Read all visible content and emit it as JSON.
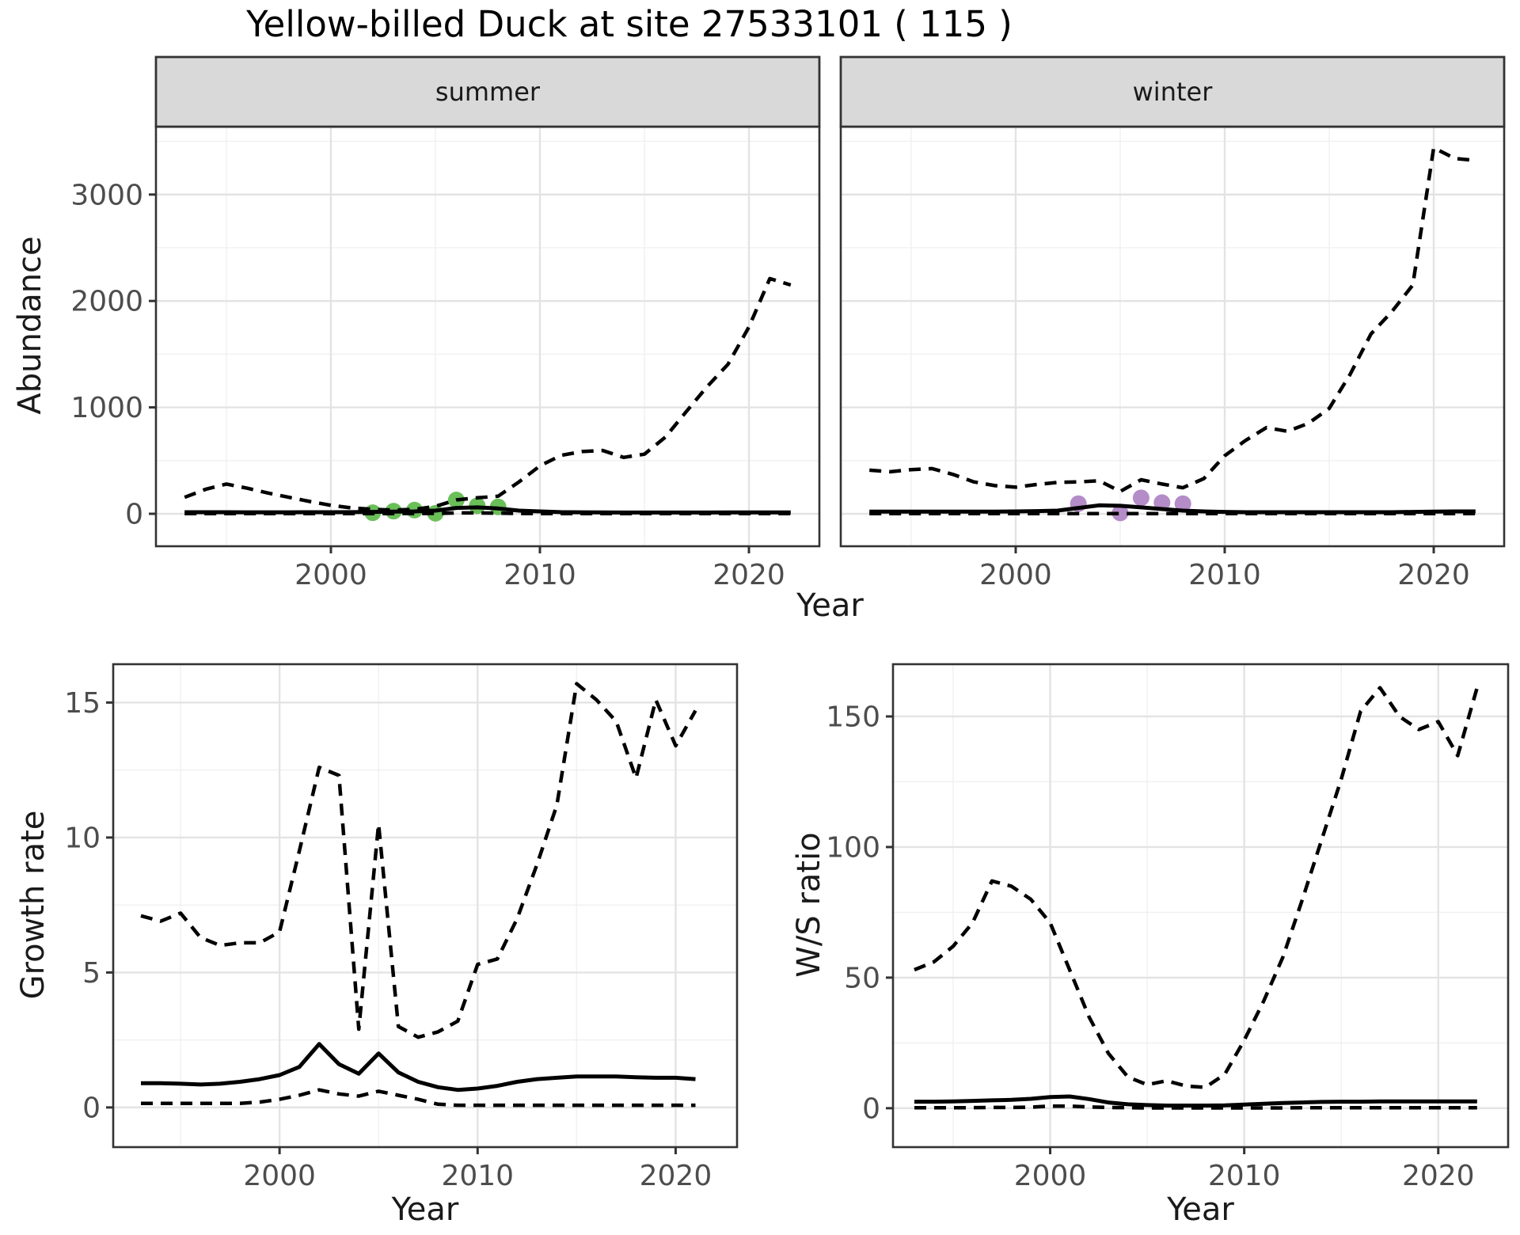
{
  "figure": {
    "title": "Yellow-billed Duck at site 27533101 ( 115 )"
  },
  "colors": {
    "line": "#000000",
    "summer_points": "#6bbf59",
    "winter_points": "#b48cc8",
    "strip_fill": "#d9d9d9",
    "panel_border": "#333333",
    "grid_major": "#e3e3e3",
    "grid_minor": "#f0f0f0",
    "tick_text": "#4d4d4d"
  },
  "chart_data": [
    {
      "id": "abundance-summer",
      "type": "line",
      "facet_label": "summer",
      "ylabel": "Abundance",
      "xlabel": "Year",
      "xlim": [
        1991.63,
        2023.37
      ],
      "ylim": [
        -305,
        3638
      ],
      "xticks": [
        2000,
        2010,
        2020
      ],
      "xticks_minor": [
        1995,
        2005,
        2015
      ],
      "yticks": [
        0,
        1000,
        2000,
        3000
      ],
      "yticks_minor": [
        500,
        1500,
        2500,
        3500
      ],
      "x": [
        1993,
        1994,
        1995,
        1996,
        1997,
        1998,
        1999,
        2000,
        2001,
        2002,
        2003,
        2004,
        2005,
        2006,
        2007,
        2008,
        2009,
        2010,
        2011,
        2012,
        2013,
        2014,
        2015,
        2016,
        2017,
        2018,
        2019,
        2020,
        2021,
        2022
      ],
      "series": [
        {
          "name": "upper_ci",
          "style": "dashed",
          "values": [
            155,
            230,
            280,
            240,
            195,
            155,
            115,
            80,
            55,
            42,
            35,
            42,
            70,
            130,
            150,
            165,
            300,
            450,
            548,
            585,
            595,
            530,
            560,
            720,
            960,
            1195,
            1405,
            1755,
            2210,
            2150
          ]
        },
        {
          "name": "median",
          "style": "solid",
          "values": [
            15,
            15,
            15,
            14,
            14,
            14,
            15,
            15,
            16,
            18,
            20,
            22,
            30,
            55,
            60,
            50,
            30,
            22,
            16,
            14,
            13,
            12,
            12,
            12,
            12,
            12,
            13,
            13,
            13,
            13
          ]
        },
        {
          "name": "lower_ci",
          "style": "dashed",
          "values": [
            2,
            2,
            2,
            2,
            2,
            2,
            2,
            2,
            2,
            2,
            2,
            3,
            4,
            8,
            8,
            6,
            3,
            2,
            2,
            2,
            2,
            2,
            2,
            2,
            2,
            2,
            2,
            2,
            2,
            2
          ]
        }
      ],
      "points": {
        "name": "observed_counts",
        "color": "#6bbf59",
        "x": [
          2002,
          2003,
          2004,
          2005,
          2006,
          2007,
          2008
        ],
        "y": [
          10,
          25,
          35,
          5,
          130,
          75,
          65
        ]
      }
    },
    {
      "id": "abundance-winter",
      "type": "line",
      "facet_label": "winter",
      "ylabel": "Abundance",
      "xlabel": "Year",
      "xlim": [
        1991.63,
        2023.37
      ],
      "ylim": [
        -305,
        3638
      ],
      "xticks": [
        2000,
        2010,
        2020
      ],
      "xticks_minor": [
        1995,
        2005,
        2015
      ],
      "yticks": [
        0,
        1000,
        2000,
        3000
      ],
      "yticks_minor": [
        500,
        1500,
        2500,
        3500
      ],
      "x": [
        1993,
        1994,
        1995,
        1996,
        1997,
        1998,
        1999,
        2000,
        2001,
        2002,
        2003,
        2004,
        2005,
        2006,
        2007,
        2008,
        2009,
        2010,
        2011,
        2012,
        2013,
        2014,
        2015,
        2016,
        2017,
        2018,
        2019,
        2020,
        2021,
        2022
      ],
      "series": [
        {
          "name": "upper_ci",
          "style": "dashed",
          "values": [
            410,
            395,
            415,
            425,
            370,
            300,
            265,
            250,
            275,
            295,
            300,
            310,
            210,
            320,
            280,
            245,
            330,
            545,
            690,
            810,
            775,
            850,
            990,
            1310,
            1690,
            1900,
            2150,
            3440,
            3340,
            3320
          ]
        },
        {
          "name": "median",
          "style": "solid",
          "values": [
            20,
            20,
            20,
            20,
            20,
            20,
            20,
            22,
            25,
            30,
            55,
            80,
            75,
            60,
            45,
            30,
            22,
            18,
            15,
            15,
            15,
            15,
            15,
            15,
            15,
            15,
            18,
            20,
            22,
            22
          ]
        },
        {
          "name": "lower_ci",
          "style": "dashed",
          "values": [
            2,
            2,
            2,
            2,
            2,
            2,
            2,
            2,
            2,
            2,
            2,
            2,
            2,
            2,
            2,
            2,
            2,
            2,
            2,
            2,
            2,
            2,
            2,
            2,
            2,
            2,
            2,
            2,
            2,
            2
          ]
        }
      ],
      "points": {
        "name": "observed_counts",
        "color": "#b48cc8",
        "x": [
          2003,
          2005,
          2006,
          2007,
          2008
        ],
        "y": [
          95,
          8,
          150,
          105,
          95
        ]
      }
    },
    {
      "id": "growth-rate",
      "type": "line",
      "facet_label": "",
      "ylabel": "Growth rate",
      "xlabel": "Year",
      "xlim": [
        1991.6,
        2023.1
      ],
      "ylim": [
        -1.47,
        16.42
      ],
      "xticks": [
        2000,
        2010,
        2020
      ],
      "xticks_minor": [
        1995,
        2005,
        2015
      ],
      "yticks": [
        0,
        5,
        10,
        15
      ],
      "yticks_minor": [
        2.5,
        7.5,
        12.5
      ],
      "x": [
        1993,
        1994,
        1995,
        1996,
        1997,
        1998,
        1999,
        2000,
        2001,
        2002,
        2003,
        2004,
        2005,
        2006,
        2007,
        2008,
        2009,
        2010,
        2011,
        2012,
        2013,
        2014,
        2015,
        2016,
        2017,
        2018,
        2019,
        2020,
        2021
      ],
      "series": [
        {
          "name": "upper_ci",
          "style": "dashed",
          "values": [
            7.1,
            6.9,
            7.2,
            6.3,
            6.0,
            6.1,
            6.1,
            6.5,
            9.5,
            12.6,
            12.3,
            2.9,
            10.5,
            3.0,
            2.6,
            2.8,
            3.2,
            5.3,
            5.5,
            7.0,
            9.0,
            11.2,
            15.7,
            15.1,
            14.3,
            12.2,
            15.1,
            13.4,
            14.7
          ]
        },
        {
          "name": "median",
          "style": "solid",
          "values": [
            0.9,
            0.9,
            0.88,
            0.85,
            0.88,
            0.95,
            1.05,
            1.2,
            1.5,
            2.35,
            1.6,
            1.25,
            2.0,
            1.3,
            0.95,
            0.75,
            0.65,
            0.7,
            0.8,
            0.95,
            1.05,
            1.1,
            1.15,
            1.15,
            1.15,
            1.12,
            1.1,
            1.1,
            1.05
          ]
        },
        {
          "name": "lower_ci",
          "style": "dashed",
          "values": [
            0.15,
            0.15,
            0.15,
            0.15,
            0.15,
            0.15,
            0.2,
            0.3,
            0.45,
            0.65,
            0.5,
            0.42,
            0.6,
            0.45,
            0.3,
            0.12,
            0.08,
            0.08,
            0.08,
            0.08,
            0.08,
            0.08,
            0.08,
            0.08,
            0.08,
            0.08,
            0.08,
            0.08,
            0.08
          ]
        }
      ],
      "points": null
    },
    {
      "id": "ws-ratio",
      "type": "line",
      "facet_label": "",
      "ylabel": "W/S ratio",
      "xlabel": "Year",
      "xlim": [
        1991.9,
        2023.6
      ],
      "ylim": [
        -14.9,
        170
      ],
      "xticks": [
        2000,
        2010,
        2020
      ],
      "xticks_minor": [
        1995,
        2005,
        2015
      ],
      "yticks": [
        0,
        50,
        100,
        150
      ],
      "yticks_minor": [
        25,
        75,
        125
      ],
      "x": [
        1993,
        1994,
        1995,
        1996,
        1997,
        1998,
        1999,
        2000,
        2001,
        2002,
        2003,
        2004,
        2005,
        2006,
        2007,
        2008,
        2009,
        2010,
        2011,
        2012,
        2013,
        2014,
        2015,
        2016,
        2017,
        2018,
        2019,
        2020,
        2021,
        2022
      ],
      "series": [
        {
          "name": "upper_ci",
          "style": "dashed",
          "values": [
            53,
            56,
            62,
            71,
            87,
            85,
            80,
            71,
            53,
            35,
            21,
            12,
            9,
            10.5,
            8.5,
            8,
            13,
            26,
            41,
            58,
            80,
            103,
            126,
            152,
            161,
            150,
            145,
            148,
            135,
            161
          ]
        },
        {
          "name": "median",
          "style": "solid",
          "values": [
            2.5,
            2.5,
            2.6,
            2.8,
            3.0,
            3.2,
            3.6,
            4.3,
            4.5,
            3.5,
            2.2,
            1.5,
            1.2,
            1.0,
            1.0,
            1.0,
            1.1,
            1.4,
            1.7,
            2.0,
            2.2,
            2.4,
            2.5,
            2.5,
            2.6,
            2.6,
            2.6,
            2.6,
            2.6,
            2.6
          ]
        },
        {
          "name": "lower_ci",
          "style": "dashed",
          "values": [
            0.2,
            0.2,
            0.2,
            0.2,
            0.3,
            0.3,
            0.4,
            0.8,
            0.8,
            0.5,
            0.3,
            0.2,
            0.1,
            0.1,
            0.1,
            0.1,
            0.1,
            0.1,
            0.1,
            0.1,
            0.2,
            0.2,
            0.2,
            0.2,
            0.2,
            0.2,
            0.2,
            0.2,
            0.2,
            0.2
          ]
        }
      ],
      "points": null
    }
  ]
}
